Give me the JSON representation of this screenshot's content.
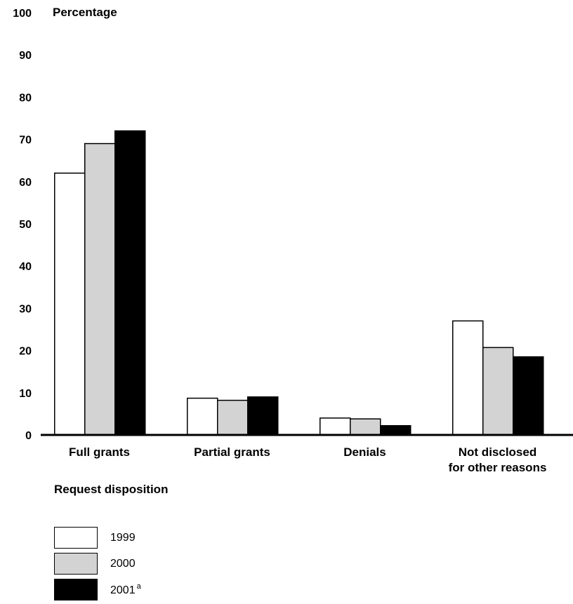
{
  "chart_data": {
    "type": "bar",
    "ylabel": "Percentage",
    "xlabel": "Request disposition",
    "ylim": [
      0,
      100
    ],
    "yticks": [
      0,
      10,
      20,
      30,
      40,
      50,
      60,
      70,
      80,
      90,
      100
    ],
    "categories": [
      [
        "Full grants"
      ],
      [
        "Partial grants"
      ],
      [
        "Denials"
      ],
      [
        "Not disclosed",
        "for other reasons"
      ]
    ],
    "series": [
      {
        "name": "1999",
        "note": "",
        "color": "#ffffff",
        "values": [
          62,
          8.7,
          4,
          27
        ]
      },
      {
        "name": "2000",
        "note": "",
        "color": "#d3d3d3",
        "values": [
          69,
          8.2,
          3.8,
          20.7
        ]
      },
      {
        "name": "2001",
        "note": "a",
        "color": "#000000",
        "values": [
          72,
          9,
          2.2,
          18.5
        ]
      }
    ],
    "grid": false,
    "legend_position": "bottom-left"
  }
}
